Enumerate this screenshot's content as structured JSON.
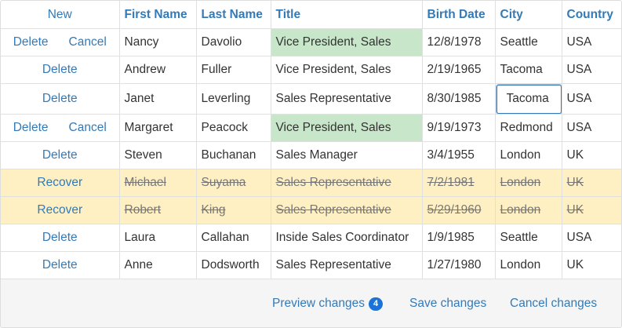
{
  "header": {
    "new_label": "New",
    "columns": [
      "First Name",
      "Last Name",
      "Title",
      "Birth Date",
      "City",
      "Country"
    ]
  },
  "rows": [
    {
      "actions": [
        "Delete",
        "Cancel"
      ],
      "first": "Nancy",
      "last": "Davolio",
      "title": "Vice President, Sales",
      "birth": "12/8/1978",
      "city": "Seattle",
      "country": "USA",
      "state": "modified"
    },
    {
      "actions": [
        "Delete"
      ],
      "first": "Andrew",
      "last": "Fuller",
      "title": "Vice President, Sales",
      "birth": "2/19/1965",
      "city": "Tacoma",
      "country": "USA",
      "state": "normal"
    },
    {
      "actions": [
        "Delete"
      ],
      "first": "Janet",
      "last": "Leverling",
      "title": "Sales Representative",
      "birth": "8/30/1985",
      "city": "Tacoma",
      "country": "USA",
      "state": "editing"
    },
    {
      "actions": [
        "Delete",
        "Cancel"
      ],
      "first": "Margaret",
      "last": "Peacock",
      "title": "Vice President, Sales",
      "birth": "9/19/1973",
      "city": "Redmond",
      "country": "USA",
      "state": "modified"
    },
    {
      "actions": [
        "Delete"
      ],
      "first": "Steven",
      "last": "Buchanan",
      "title": "Sales Manager",
      "birth": "3/4/1955",
      "city": "London",
      "country": "UK",
      "state": "normal"
    },
    {
      "actions": [
        "Recover"
      ],
      "first": "Michael",
      "last": "Suyama",
      "title": "Sales Representative",
      "birth": "7/2/1981",
      "city": "London",
      "country": "UK",
      "state": "removed"
    },
    {
      "actions": [
        "Recover"
      ],
      "first": "Robert",
      "last": "King",
      "title": "Sales Representative",
      "birth": "5/29/1960",
      "city": "London",
      "country": "UK",
      "state": "removed"
    },
    {
      "actions": [
        "Delete"
      ],
      "first": "Laura",
      "last": "Callahan",
      "title": "Inside Sales Coordinator",
      "birth": "1/9/1985",
      "city": "Seattle",
      "country": "USA",
      "state": "normal"
    },
    {
      "actions": [
        "Delete"
      ],
      "first": "Anne",
      "last": "Dodsworth",
      "title": "Sales Representative",
      "birth": "1/27/1980",
      "city": "London",
      "country": "UK",
      "state": "normal"
    }
  ],
  "toolbar": {
    "preview_label": "Preview changes",
    "preview_count": "4",
    "save_label": "Save changes",
    "cancel_label": "Cancel changes"
  },
  "colors": {
    "link": "#337ab7",
    "modified_cell": "#c8e6c9",
    "removed_row": "#fff0c4",
    "badge": "#1a73d9"
  }
}
